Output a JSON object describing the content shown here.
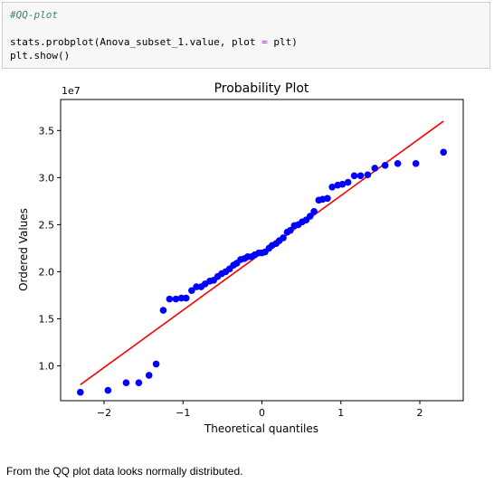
{
  "code_cell": {
    "comment": "#QQ-plot",
    "line1_pre": "stats.probplot(Anova_subset_1.value, plot ",
    "line1_op": "=",
    "line1_post": " plt)",
    "line2": "plt.show()"
  },
  "chart_data": {
    "type": "scatter",
    "title": "Probability Plot",
    "xlabel": "Theoretical quantiles",
    "ylabel": "Ordered Values",
    "offset_label": "1e7",
    "xlim": [
      -2.55,
      2.55
    ],
    "ylim": [
      0.63,
      3.83
    ],
    "xticks": [
      -2,
      -1,
      0,
      1,
      2
    ],
    "xtick_labels": [
      "−2",
      "−1",
      "0",
      "1",
      "2"
    ],
    "yticks": [
      1.0,
      1.5,
      2.0,
      2.5,
      3.0,
      3.5
    ],
    "ytick_labels": [
      "1.0",
      "1.5",
      "2.0",
      "2.5",
      "3.0",
      "3.5"
    ],
    "grid": false,
    "colors": {
      "points": "#0000ff",
      "fit_line": "#ff0000"
    },
    "fit_line": {
      "x": [
        -2.3,
        2.3
      ],
      "y": [
        0.8,
        3.6
      ]
    },
    "points": {
      "x": [
        -2.3,
        -1.95,
        -1.72,
        -1.56,
        -1.43,
        -1.34,
        -1.25,
        -1.17,
        -1.09,
        -1.02,
        -0.96,
        -0.89,
        -0.83,
        -0.77,
        -0.72,
        -0.66,
        -0.61,
        -0.56,
        -0.51,
        -0.46,
        -0.41,
        -0.36,
        -0.32,
        -0.27,
        -0.22,
        -0.18,
        -0.13,
        -0.09,
        -0.04,
        0.0,
        0.04,
        0.09,
        0.13,
        0.18,
        0.22,
        0.27,
        0.32,
        0.36,
        0.41,
        0.46,
        0.51,
        0.56,
        0.61,
        0.66,
        0.72,
        0.77,
        0.83,
        0.89,
        0.96,
        1.02,
        1.09,
        1.17,
        1.25,
        1.34,
        1.43,
        1.56,
        1.72,
        1.95,
        2.3
      ],
      "y": [
        0.72,
        0.74,
        0.82,
        0.82,
        0.9,
        1.02,
        1.59,
        1.71,
        1.71,
        1.72,
        1.72,
        1.8,
        1.84,
        1.84,
        1.87,
        1.9,
        1.91,
        1.95,
        1.98,
        2.0,
        2.03,
        2.07,
        2.09,
        2.13,
        2.14,
        2.16,
        2.16,
        2.18,
        2.2,
        2.2,
        2.21,
        2.25,
        2.28,
        2.3,
        2.33,
        2.36,
        2.42,
        2.44,
        2.49,
        2.5,
        2.53,
        2.55,
        2.59,
        2.64,
        2.76,
        2.77,
        2.78,
        2.9,
        2.92,
        2.93,
        2.95,
        3.02,
        3.02,
        3.03,
        3.1,
        3.13,
        3.15,
        3.15,
        3.27
      ]
    }
  },
  "output_text": "From the QQ plot data looks normally distributed."
}
